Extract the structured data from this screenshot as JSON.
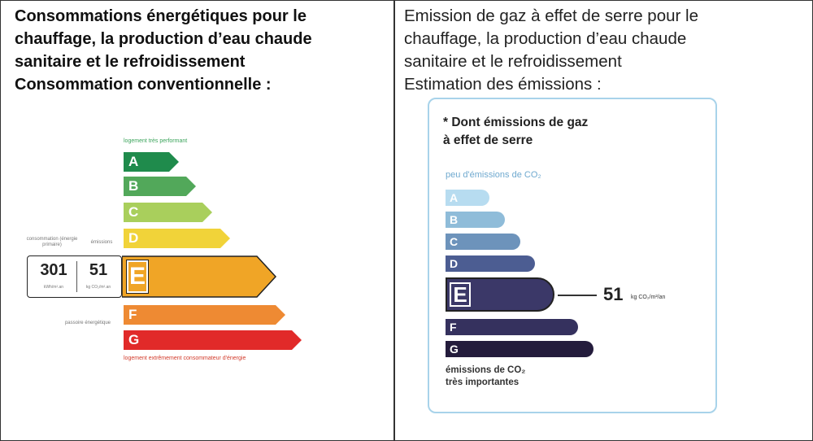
{
  "left": {
    "heading": [
      "Consommations énergétiques pour le",
      "chauffage, la production d’eau chaude",
      "sanitaire et le refroidissement",
      "Consommation conventionnelle :"
    ],
    "dpe": {
      "top_caption": "logement très performant",
      "bottom_caption": "logement extrêmement consommateur d'énergie",
      "consumption_caption": "consommation (énergie primaire)",
      "emissions_caption": "émissions",
      "passoire_caption": "passoire énergétique",
      "consumption_value": "301",
      "consumption_unit": "kWh/m².an",
      "emissions_value": "51",
      "emissions_unit": "kg CO₂/m².an",
      "current_class": "E",
      "classes": [
        "A",
        "B",
        "C",
        "D",
        "E",
        "F",
        "G"
      ],
      "colors": {
        "A": "#1f8b4c",
        "B": "#52a85a",
        "C": "#a9cf5c",
        "D": "#f1d339",
        "E": "#f0a526",
        "F": "#ee8a33",
        "G": "#e12a29"
      }
    }
  },
  "right": {
    "heading": [
      "Emission de gaz à effet de serre pour le",
      "chauffage, la production d’eau chaude",
      "sanitaire et le refroidissement",
      "Estimation des émissions :"
    ],
    "ges": {
      "title": [
        "* Dont émissions de gaz",
        "à effet de serre"
      ],
      "top_caption": "peu d'émissions de CO₂",
      "bottom_caption": [
        "émissions de CO₂",
        "très importantes"
      ],
      "current_class": "E",
      "value": "51",
      "unit": "kg CO₂/m²/an",
      "classes": [
        "A",
        "B",
        "C",
        "D",
        "E",
        "F",
        "G"
      ],
      "colors": {
        "A": "#b7dcf0",
        "B": "#8fbcd9",
        "C": "#6d93bb",
        "D": "#4c5d92",
        "E": "#3b3868",
        "F": "#35315e",
        "G": "#241c3c"
      }
    }
  }
}
